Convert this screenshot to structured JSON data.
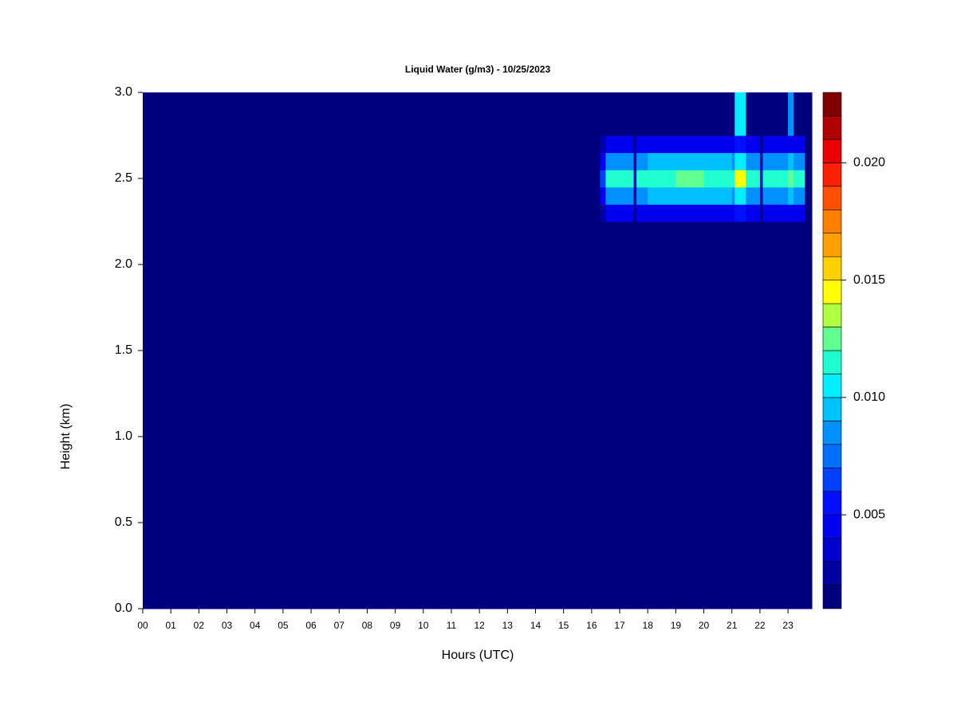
{
  "chart_data": {
    "type": "heatmap",
    "title": "Liquid Water (g/m3) - 10/25/2023",
    "xlabel": "Hours (UTC)",
    "ylabel": "Height (km)",
    "xlim": [
      0,
      23.85
    ],
    "ylim": [
      0,
      3
    ],
    "xticks": [
      {
        "value": 0,
        "label": "00"
      },
      {
        "value": 1,
        "label": "01"
      },
      {
        "value": 2,
        "label": "02"
      },
      {
        "value": 3,
        "label": "03"
      },
      {
        "value": 4,
        "label": "04"
      },
      {
        "value": 5,
        "label": "05"
      },
      {
        "value": 6,
        "label": "06"
      },
      {
        "value": 7,
        "label": "07"
      },
      {
        "value": 8,
        "label": "08"
      },
      {
        "value": 9,
        "label": "09"
      },
      10,
      11,
      12,
      13,
      14,
      15,
      16,
      17,
      18,
      19,
      20,
      21,
      22,
      23
    ],
    "yticks": [
      {
        "value": 0,
        "label": "0.0"
      },
      0.5,
      {
        "value": 1,
        "label": "1.0"
      },
      1.5,
      {
        "value": 2,
        "label": "2.0"
      },
      2.5,
      {
        "value": 3,
        "label": "3.0"
      }
    ],
    "x_edges": [
      0,
      16.3,
      16.5,
      17,
      17.5,
      17.6,
      18,
      19,
      20,
      21,
      21.1,
      21.5,
      22,
      22.1,
      23,
      23.2,
      23.6,
      23.85
    ],
    "y_edges": [
      0,
      2.25,
      2.35,
      2.45,
      2.55,
      2.65,
      2.75,
      3
    ],
    "z": [
      [
        0,
        0,
        0,
        0,
        0,
        0,
        0,
        0,
        0,
        0,
        0,
        0,
        0,
        0,
        0,
        0,
        0
      ],
      [
        0,
        0.002,
        0.004,
        0.004,
        0.001,
        0.004,
        0.004,
        0.004,
        0.004,
        0.004,
        0.005,
        0.004,
        0.001,
        0.004,
        0.004,
        0.004,
        0
      ],
      [
        0,
        0.004,
        0.008,
        0.008,
        0.002,
        0.008,
        0.009,
        0.009,
        0.009,
        0.008,
        0.01,
        0.008,
        0.002,
        0.008,
        0.009,
        0.008,
        0
      ],
      [
        0,
        0.006,
        0.011,
        0.011,
        0.003,
        0.011,
        0.011,
        0.012,
        0.011,
        0.011,
        0.014,
        0.011,
        0.003,
        0.011,
        0.012,
        0.011,
        0
      ],
      [
        0,
        0.004,
        0.008,
        0.008,
        0.002,
        0.008,
        0.009,
        0.009,
        0.009,
        0.008,
        0.01,
        0.008,
        0.002,
        0.008,
        0.009,
        0.008,
        0
      ],
      [
        0,
        0.002,
        0.004,
        0.004,
        0.001,
        0.004,
        0.004,
        0.004,
        0.004,
        0.004,
        0.005,
        0.004,
        0.001,
        0.004,
        0.004,
        0.004,
        0
      ],
      [
        0,
        0,
        0,
        0,
        0,
        0,
        0,
        0,
        0,
        0,
        0.01,
        0,
        0,
        0,
        0.008,
        0,
        0
      ]
    ],
    "colorbar": {
      "levels": [
        0.001,
        0.002,
        0.003,
        0.004,
        0.005,
        0.006,
        0.007,
        0.008,
        0.009,
        0.01,
        0.011,
        0.012,
        0.013,
        0.014,
        0.015,
        0.016,
        0.017,
        0.018,
        0.019,
        0.02,
        0.021,
        0.022,
        0.023
      ],
      "colors": [
        "#00007f",
        "#0000a0",
        "#0000cc",
        "#0000ee",
        "#0010ff",
        "#0040ff",
        "#0070ff",
        "#0090ff",
        "#00c0ff",
        "#00eeff",
        "#20ffd0",
        "#60ff90",
        "#b0ff40",
        "#ffff00",
        "#ffd000",
        "#ffa000",
        "#ff8000",
        "#ff5000",
        "#ff2000",
        "#e80000",
        "#b00000",
        "#800000"
      ],
      "ticks": [
        0.005,
        {
          "value": 0.01,
          "label": "0.010"
        },
        0.015,
        {
          "value": 0.02,
          "label": "0.020"
        }
      ]
    }
  }
}
